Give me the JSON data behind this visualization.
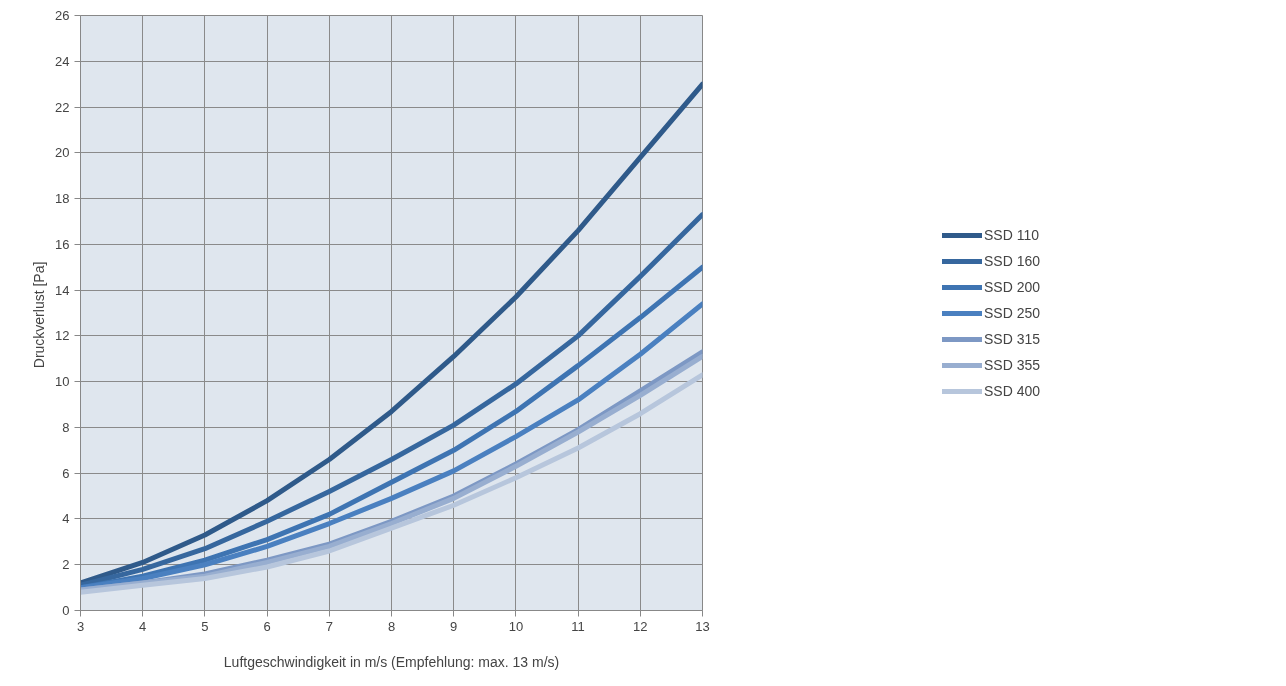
{
  "chart_data": {
    "type": "line",
    "xlabel": "Luftgeschwindigkeit in m/s (Empfehlung: max. 13 m/s)",
    "ylabel": "Druckverlust  [Pa]",
    "x": [
      3,
      4,
      5,
      6,
      7,
      8,
      9,
      10,
      11,
      12,
      13
    ],
    "series": [
      {
        "name": "SSD 110",
        "color": "#2f5a8a",
        "values": [
          1.2,
          2.1,
          3.3,
          4.8,
          6.6,
          8.7,
          11.1,
          13.7,
          16.6,
          19.8,
          23.0
        ]
      },
      {
        "name": "SSD 160",
        "color": "#36679e",
        "values": [
          1.1,
          1.8,
          2.7,
          3.9,
          5.2,
          6.6,
          8.1,
          9.9,
          12.0,
          14.6,
          17.3
        ]
      },
      {
        "name": "SSD 200",
        "color": "#3e74b2",
        "values": [
          1.0,
          1.5,
          2.2,
          3.1,
          4.2,
          5.6,
          7.0,
          8.7,
          10.7,
          12.8,
          15.0
        ]
      },
      {
        "name": "SSD 250",
        "color": "#4a80c0",
        "values": [
          1.0,
          1.4,
          2.0,
          2.8,
          3.8,
          4.9,
          6.1,
          7.6,
          9.2,
          11.2,
          13.4
        ]
      },
      {
        "name": "SSD 315",
        "color": "#7d98c4",
        "values": [
          0.9,
          1.2,
          1.6,
          2.2,
          2.9,
          3.9,
          5.0,
          6.4,
          7.9,
          9.6,
          11.3
        ]
      },
      {
        "name": "SSD 355",
        "color": "#98aed0",
        "values": [
          0.9,
          1.2,
          1.5,
          2.1,
          2.8,
          3.8,
          4.9,
          6.3,
          7.8,
          9.4,
          11.1
        ]
      },
      {
        "name": "SSD 400",
        "color": "#b7c6dc",
        "values": [
          0.8,
          1.1,
          1.4,
          1.9,
          2.6,
          3.6,
          4.6,
          5.8,
          7.1,
          8.6,
          10.3
        ]
      }
    ],
    "xlim": [
      3,
      13
    ],
    "xticks": [
      3,
      4,
      5,
      6,
      7,
      8,
      9,
      10,
      11,
      12,
      13
    ],
    "ylim": [
      0,
      26
    ],
    "yticks": [
      0,
      2,
      4,
      6,
      8,
      10,
      12,
      14,
      16,
      18,
      20,
      22,
      24,
      26
    ],
    "grid": true,
    "legend": "right",
    "marker": "none",
    "line_style": "solid"
  }
}
